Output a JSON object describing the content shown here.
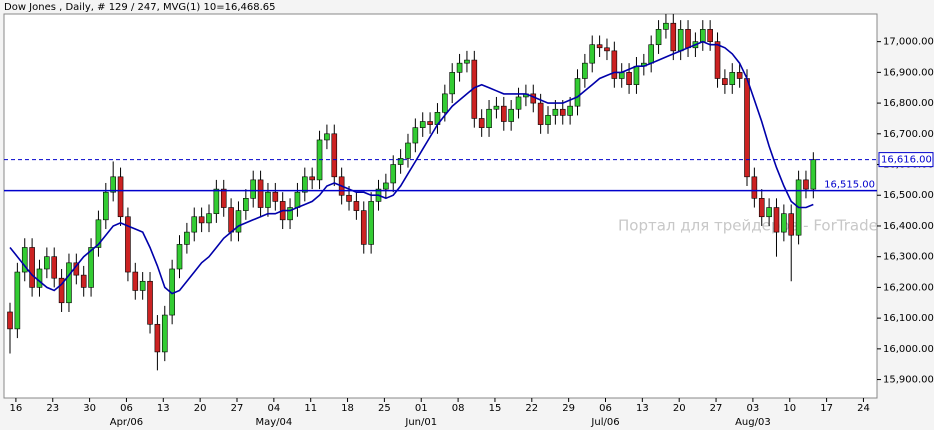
{
  "chart_data": {
    "type": "candlestick",
    "title": "Dow Jones , Daily, # 129 / 247, MVG(1) 10=16,468.65",
    "watermark": "Портал для трейдеров - ForTrader.ru",
    "up_color": "#33cc33",
    "down_color": "#cc2222",
    "open": [
      16120,
      16065,
      16250,
      16330,
      16200,
      16260,
      16300,
      16230,
      16150,
      16280,
      16240,
      16200,
      16330,
      16420,
      16510,
      16560,
      16430,
      16250,
      16190,
      16220,
      16080,
      15990,
      16110,
      16260,
      16340,
      16380,
      16430,
      16410,
      16440,
      16520,
      16460,
      16380,
      16450,
      16490,
      16550,
      16460,
      16510,
      16480,
      16420,
      16460,
      16510,
      16560,
      16550,
      16680,
      16700,
      16560,
      16500,
      16480,
      16450,
      16340,
      16480,
      16520,
      16540,
      16600,
      16620,
      16670,
      16720,
      16740,
      16730,
      16770,
      16830,
      16900,
      16930,
      16940,
      16750,
      16720,
      16780,
      16790,
      16740,
      16780,
      16820,
      16830,
      16800,
      16730,
      16760,
      16780,
      16760,
      16790,
      16880,
      16930,
      16990,
      16980,
      16970,
      16880,
      16900,
      16860,
      16920,
      16930,
      16990,
      17040,
      17060,
      16970,
      17040,
      16980,
      17000,
      17040,
      17000,
      16880,
      16860,
      16900,
      16880,
      16560,
      16490,
      16430,
      16460,
      16380,
      16440,
      16370,
      16550,
      16520
    ],
    "high": [
      16150,
      16280,
      16360,
      16360,
      16290,
      16330,
      16330,
      16260,
      16310,
      16310,
      16270,
      16360,
      16450,
      16540,
      16610,
      16590,
      16460,
      16280,
      16250,
      16250,
      16110,
      16140,
      16290,
      16370,
      16410,
      16460,
      16460,
      16470,
      16550,
      16550,
      16490,
      16480,
      16520,
      16580,
      16580,
      16540,
      16540,
      16510,
      16490,
      16540,
      16590,
      16590,
      16710,
      16730,
      16730,
      16590,
      16530,
      16510,
      16480,
      16510,
      16550,
      16570,
      16630,
      16650,
      16700,
      16750,
      16770,
      16770,
      16800,
      16860,
      16930,
      16960,
      16970,
      16970,
      16780,
      16810,
      16820,
      16820,
      16810,
      16850,
      16860,
      16860,
      16830,
      16790,
      16810,
      16810,
      16820,
      16910,
      16960,
      17020,
      17020,
      17010,
      17000,
      16930,
      16930,
      16950,
      16960,
      17020,
      17070,
      17090,
      17090,
      17070,
      17070,
      17030,
      17070,
      17070,
      17030,
      16910,
      16930,
      16930,
      16910,
      16590,
      16520,
      16490,
      16490,
      16470,
      16470,
      16580,
      16580,
      16640
    ],
    "low": [
      15985,
      16035,
      16220,
      16170,
      16170,
      16230,
      16200,
      16120,
      16120,
      16210,
      16170,
      16170,
      16300,
      16390,
      16480,
      16400,
      16220,
      16160,
      16160,
      16050,
      15930,
      15960,
      16080,
      16230,
      16310,
      16350,
      16380,
      16380,
      16410,
      16430,
      16350,
      16350,
      16420,
      16460,
      16430,
      16430,
      16450,
      16390,
      16390,
      16430,
      16480,
      16520,
      16520,
      16650,
      16530,
      16470,
      16450,
      16420,
      16310,
      16310,
      16450,
      16490,
      16510,
      16570,
      16590,
      16640,
      16690,
      16700,
      16700,
      16740,
      16800,
      16870,
      16900,
      16720,
      16690,
      16690,
      16750,
      16710,
      16710,
      16750,
      16790,
      16770,
      16700,
      16700,
      16730,
      16730,
      16730,
      16760,
      16850,
      16900,
      16950,
      16940,
      16850,
      16850,
      16830,
      16830,
      16890,
      16900,
      16960,
      17010,
      16940,
      16940,
      16950,
      16950,
      16970,
      16970,
      16850,
      16830,
      16830,
      16850,
      16530,
      16460,
      16400,
      16400,
      16300,
      16350,
      16220,
      16340,
      16490,
      16490
    ],
    "close": [
      16065,
      16250,
      16330,
      16200,
      16260,
      16300,
      16230,
      16150,
      16280,
      16240,
      16200,
      16330,
      16420,
      16510,
      16560,
      16430,
      16250,
      16190,
      16220,
      16080,
      15990,
      16110,
      16260,
      16340,
      16380,
      16430,
      16410,
      16440,
      16520,
      16460,
      16380,
      16450,
      16490,
      16550,
      16460,
      16510,
      16480,
      16420,
      16460,
      16510,
      16560,
      16550,
      16680,
      16700,
      16560,
      16500,
      16480,
      16450,
      16340,
      16480,
      16520,
      16540,
      16600,
      16620,
      16670,
      16720,
      16740,
      16730,
      16770,
      16830,
      16900,
      16930,
      16940,
      16750,
      16720,
      16780,
      16790,
      16740,
      16780,
      16820,
      16830,
      16800,
      16730,
      16760,
      16780,
      16760,
      16790,
      16880,
      16930,
      16990,
      16980,
      16970,
      16880,
      16900,
      16860,
      16920,
      16930,
      16990,
      17040,
      17060,
      16970,
      17040,
      16980,
      17000,
      17040,
      17000,
      16880,
      16860,
      16900,
      16880,
      16560,
      16490,
      16430,
      16460,
      16380,
      16440,
      16370,
      16550,
      16520,
      16616
    ],
    "ma": {
      "color": "#0000aa",
      "values": [
        16330,
        16300,
        16270,
        16240,
        16220,
        16200,
        16190,
        16210,
        16240,
        16270,
        16300,
        16320,
        16340,
        16370,
        16400,
        16410,
        16400,
        16390,
        16380,
        16330,
        16270,
        16200,
        16180,
        16190,
        16220,
        16250,
        16280,
        16300,
        16330,
        16360,
        16380,
        16400,
        16410,
        16420,
        16430,
        16440,
        16440,
        16450,
        16450,
        16460,
        16470,
        16480,
        16500,
        16530,
        16540,
        16530,
        16520,
        16510,
        16510,
        16500,
        16500,
        16490,
        16500,
        16530,
        16570,
        16610,
        16650,
        16690,
        16730,
        16760,
        16790,
        16810,
        16830,
        16850,
        16860,
        16850,
        16840,
        16830,
        16830,
        16830,
        16830,
        16820,
        16810,
        16800,
        16800,
        16800,
        16810,
        16820,
        16840,
        16860,
        16880,
        16890,
        16900,
        16900,
        16910,
        16920,
        16920,
        16930,
        16940,
        16950,
        16960,
        16970,
        16980,
        16990,
        17000,
        16990,
        16990,
        16980,
        16960,
        16930,
        16880,
        16810,
        16740,
        16660,
        16590,
        16530,
        16480,
        16460,
        16460,
        16470
      ]
    },
    "hlines": [
      {
        "value": 16515,
        "label": "16,515.00",
        "color": "#0000cc",
        "style": "solid"
      },
      {
        "value": 16616,
        "label": "16,616.00",
        "color": "#0000cc",
        "style": "dashed"
      }
    ],
    "ylim": [
      15840,
      17090
    ],
    "yticks": [
      {
        "value": 15900,
        "label": "15,900.00"
      },
      {
        "value": 16000,
        "label": "16,000.00"
      },
      {
        "value": 16100,
        "label": "16,100.00"
      },
      {
        "value": 16200,
        "label": "16,200.00"
      },
      {
        "value": 16300,
        "label": "16,300.00"
      },
      {
        "value": 16400,
        "label": "16,400.00"
      },
      {
        "value": 16500,
        "label": "16,500.00"
      },
      {
        "value": 16600,
        "label": "16,600.00"
      },
      {
        "value": 16700,
        "label": "16,700.00"
      },
      {
        "value": 16800,
        "label": "16,800.00"
      },
      {
        "value": 16900,
        "label": "16,900.00"
      },
      {
        "value": 17000,
        "label": "17,000.00"
      }
    ],
    "xticks": [
      {
        "value": 0.8,
        "label": "16"
      },
      {
        "value": 5.8,
        "label": "23"
      },
      {
        "value": 10.8,
        "label": "30"
      },
      {
        "value": 15.8,
        "label": "06"
      },
      {
        "value": 20.8,
        "label": "13"
      },
      {
        "value": 25.8,
        "label": "20"
      },
      {
        "value": 30.8,
        "label": "27"
      },
      {
        "value": 35.8,
        "label": "04"
      },
      {
        "value": 40.8,
        "label": "11"
      },
      {
        "value": 45.8,
        "label": "18"
      },
      {
        "value": 50.8,
        "label": "25"
      },
      {
        "value": 55.8,
        "label": "01"
      },
      {
        "value": 60.8,
        "label": "08"
      },
      {
        "value": 65.8,
        "label": "15"
      },
      {
        "value": 70.8,
        "label": "22"
      },
      {
        "value": 75.8,
        "label": "29"
      },
      {
        "value": 80.8,
        "label": "06"
      },
      {
        "value": 85.8,
        "label": "13"
      },
      {
        "value": 90.8,
        "label": "20"
      },
      {
        "value": 95.8,
        "label": "27"
      },
      {
        "value": 100.8,
        "label": "03"
      },
      {
        "value": 105.8,
        "label": "10"
      },
      {
        "value": 110.8,
        "label": "17"
      },
      {
        "value": 115.8,
        "label": "24"
      }
    ],
    "month_labels": [
      {
        "value": 15.8,
        "label": "Apr/06"
      },
      {
        "value": 35.8,
        "label": "May/04"
      },
      {
        "value": 55.8,
        "label": "Jun/01"
      },
      {
        "value": 80.8,
        "label": "Jul/06"
      },
      {
        "value": 100.8,
        "label": "Aug/03"
      }
    ]
  }
}
